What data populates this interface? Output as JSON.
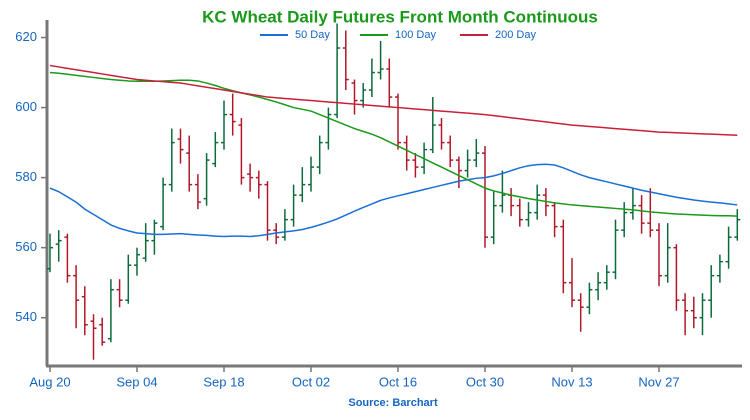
{
  "chart_data": {
    "type": "ohlc",
    "title": "KC Wheat Daily Futures Front Month Continuous",
    "source": "Source: Barchart",
    "categories": [
      "Aug 20",
      null,
      null,
      null,
      null,
      null,
      null,
      null,
      null,
      null,
      "Sep 04",
      null,
      null,
      null,
      null,
      null,
      null,
      null,
      null,
      null,
      "Sep 18",
      null,
      null,
      null,
      null,
      null,
      null,
      null,
      null,
      null,
      "Oct 02",
      null,
      null,
      null,
      null,
      null,
      null,
      null,
      null,
      null,
      "Oct 16",
      null,
      null,
      null,
      null,
      null,
      null,
      null,
      null,
      null,
      "Oct 30",
      null,
      null,
      null,
      null,
      null,
      null,
      null,
      null,
      null,
      "Nov 13",
      null,
      null,
      null,
      null,
      null,
      null,
      null,
      null,
      null,
      "Nov 27",
      null,
      null,
      null,
      null,
      null,
      null,
      null,
      null,
      null
    ],
    "ohlc": [
      [
        554,
        564,
        553,
        560
      ],
      [
        561,
        565,
        556,
        562
      ],
      [
        563,
        564,
        550,
        552
      ],
      [
        552,
        555,
        537,
        545
      ],
      [
        546,
        549,
        535,
        538
      ],
      [
        539,
        541,
        528,
        537
      ],
      [
        538,
        540,
        532,
        533
      ],
      [
        534,
        551,
        533,
        548
      ],
      [
        548,
        551,
        543,
        545
      ],
      [
        545,
        558,
        544,
        555
      ],
      [
        555,
        560,
        552,
        558
      ],
      [
        557,
        567,
        556,
        562
      ],
      [
        562,
        568,
        558,
        567
      ],
      [
        566,
        580,
        565,
        578
      ],
      [
        578,
        594,
        576,
        590
      ],
      [
        591,
        594,
        584,
        588
      ],
      [
        587,
        592,
        576,
        578
      ],
      [
        578,
        581,
        571,
        573
      ],
      [
        574,
        587,
        572,
        585
      ],
      [
        584,
        593,
        583,
        590
      ],
      [
        590,
        602,
        588,
        598
      ],
      [
        598,
        604,
        592,
        596
      ],
      [
        595,
        597,
        578,
        580
      ],
      [
        581,
        584,
        576,
        580
      ],
      [
        580,
        582,
        574,
        578
      ],
      [
        578,
        579,
        562,
        565
      ],
      [
        565,
        567,
        561,
        563
      ],
      [
        563,
        571,
        562,
        568
      ],
      [
        568,
        578,
        566,
        575
      ],
      [
        575,
        583,
        573,
        578
      ],
      [
        578,
        586,
        576,
        583
      ],
      [
        583,
        592,
        581,
        590
      ],
      [
        590,
        600,
        588,
        598
      ],
      [
        598,
        624,
        597,
        617
      ],
      [
        617,
        622,
        605,
        608
      ],
      [
        607,
        608,
        598,
        602
      ],
      [
        602,
        607,
        600,
        605
      ],
      [
        605,
        614,
        603,
        610
      ],
      [
        610,
        619,
        608,
        611
      ],
      [
        611,
        614,
        600,
        603
      ],
      [
        603,
        604,
        588,
        590
      ],
      [
        590,
        592,
        582,
        585
      ],
      [
        585,
        587,
        580,
        583
      ],
      [
        583,
        590,
        581,
        588
      ],
      [
        588,
        603,
        587,
        595
      ],
      [
        595,
        597,
        588,
        590
      ],
      [
        590,
        592,
        583,
        585
      ],
      [
        585,
        586,
        577,
        582
      ],
      [
        582,
        588,
        580,
        585
      ],
      [
        585,
        591,
        583,
        587
      ],
      [
        587,
        589,
        560,
        563
      ],
      [
        563,
        576,
        561,
        572
      ],
      [
        572,
        582,
        570,
        575
      ],
      [
        575,
        577,
        569,
        572
      ],
      [
        572,
        574,
        566,
        568
      ],
      [
        568,
        573,
        566,
        570
      ],
      [
        570,
        578,
        568,
        575
      ],
      [
        575,
        577,
        569,
        572
      ],
      [
        572,
        573,
        563,
        566
      ],
      [
        566,
        568,
        547,
        550
      ],
      [
        550,
        557,
        543,
        545
      ],
      [
        545,
        547,
        536,
        543
      ],
      [
        543,
        550,
        541,
        548
      ],
      [
        548,
        553,
        545,
        550
      ],
      [
        550,
        555,
        548,
        553
      ],
      [
        553,
        568,
        551,
        565
      ],
      [
        565,
        573,
        563,
        570
      ],
      [
        570,
        577,
        568,
        572
      ],
      [
        572,
        575,
        564,
        567
      ],
      [
        567,
        577,
        563,
        565
      ],
      [
        565,
        567,
        549,
        552
      ],
      [
        552,
        567,
        550,
        560
      ],
      [
        560,
        561,
        542,
        545
      ],
      [
        545,
        547,
        535,
        542
      ],
      [
        542,
        546,
        537,
        540
      ],
      [
        540,
        547,
        535,
        545
      ],
      [
        545,
        555,
        540,
        552
      ],
      [
        552,
        558,
        550,
        556
      ],
      [
        556,
        566,
        554,
        563
      ],
      [
        563,
        571,
        562,
        568
      ]
    ],
    "up_color": "#0b6b3a",
    "down_color": "#b0182a",
    "series": [
      {
        "name": "50 Day",
        "color": "#1a6fd6",
        "values": [
          577,
          576,
          574.5,
          573,
          571,
          569.5,
          568,
          566.5,
          565.5,
          564.8,
          564.2,
          564,
          563.8,
          563.8,
          563.9,
          564,
          563.8,
          563.6,
          563.5,
          563.3,
          563.2,
          563.3,
          563.3,
          563.2,
          563.4,
          563.8,
          564.2,
          564.5,
          564.8,
          565.2,
          565.8,
          566.5,
          567.3,
          568.2,
          569.3,
          570.4,
          571.5,
          572.5,
          573.5,
          574.2,
          574.8,
          575.4,
          576,
          576.6,
          577.2,
          577.8,
          578.4,
          579,
          579.4,
          579.8,
          580,
          580.5,
          581.2,
          582,
          582.8,
          583.4,
          583.7,
          583.8,
          583.6,
          582.8,
          581.8,
          580.8,
          580,
          579.4,
          578.8,
          578.2,
          577.6,
          577,
          576.4,
          575.9,
          575.4,
          574.9,
          574.4,
          574,
          573.6,
          573.3,
          573,
          572.8,
          572.5,
          572.2
        ]
      },
      {
        "name": "100 Day",
        "color": "#1a9a1a",
        "values": [
          610,
          609.8,
          609.5,
          609.2,
          608.9,
          608.6,
          608.3,
          608,
          607.8,
          607.6,
          607.5,
          607.5,
          607.5,
          607.6,
          607.7,
          607.8,
          607.8,
          607.6,
          607,
          606.3,
          605.5,
          604.8,
          604.2,
          603.6,
          603,
          602.3,
          601.6,
          600.8,
          600,
          599.5,
          599,
          598,
          597,
          596,
          595,
          594,
          593.2,
          592.4,
          591.4,
          590.2,
          589,
          587.8,
          586.6,
          585.4,
          584.2,
          583,
          581.8,
          580.6,
          579.4,
          578.2,
          577,
          576.2,
          575.6,
          575,
          574.5,
          574,
          573.6,
          573.2,
          572.8,
          572.5,
          572.2,
          572,
          571.8,
          571.6,
          571.4,
          571.2,
          571,
          570.8,
          570.5,
          570.2,
          570,
          569.8,
          569.6,
          569.5,
          569.4,
          569.3,
          569.2,
          569.1,
          569.1,
          569
        ]
      },
      {
        "name": "200 Day",
        "color": "#c8203a",
        "values": [
          612,
          611.6,
          611.2,
          610.8,
          610.4,
          610,
          609.6,
          609.2,
          608.8,
          608.4,
          608,
          607.8,
          607.6,
          607.4,
          607.2,
          607,
          606.6,
          606.2,
          605.8,
          605.4,
          605,
          604.6,
          604.2,
          603.8,
          603.4,
          603,
          602.8,
          602.6,
          602.4,
          602.2,
          602,
          601.8,
          601.6,
          601.4,
          601.2,
          601,
          600.8,
          600.6,
          600.4,
          600.2,
          600,
          599.8,
          599.6,
          599.4,
          599.2,
          599,
          598.8,
          598.6,
          598.4,
          598.2,
          598,
          597.7,
          597.4,
          597.1,
          596.8,
          596.5,
          596.2,
          595.9,
          595.6,
          595.3,
          595,
          594.8,
          594.6,
          594.4,
          594.2,
          594,
          593.8,
          593.6,
          593.4,
          593.2,
          593,
          592.9,
          592.8,
          592.7,
          592.6,
          592.5,
          592.4,
          592.3,
          592.2,
          592.1
        ]
      }
    ],
    "ylim": [
      526.5,
      625
    ],
    "yticks": [
      540,
      560,
      580,
      600,
      620
    ]
  }
}
